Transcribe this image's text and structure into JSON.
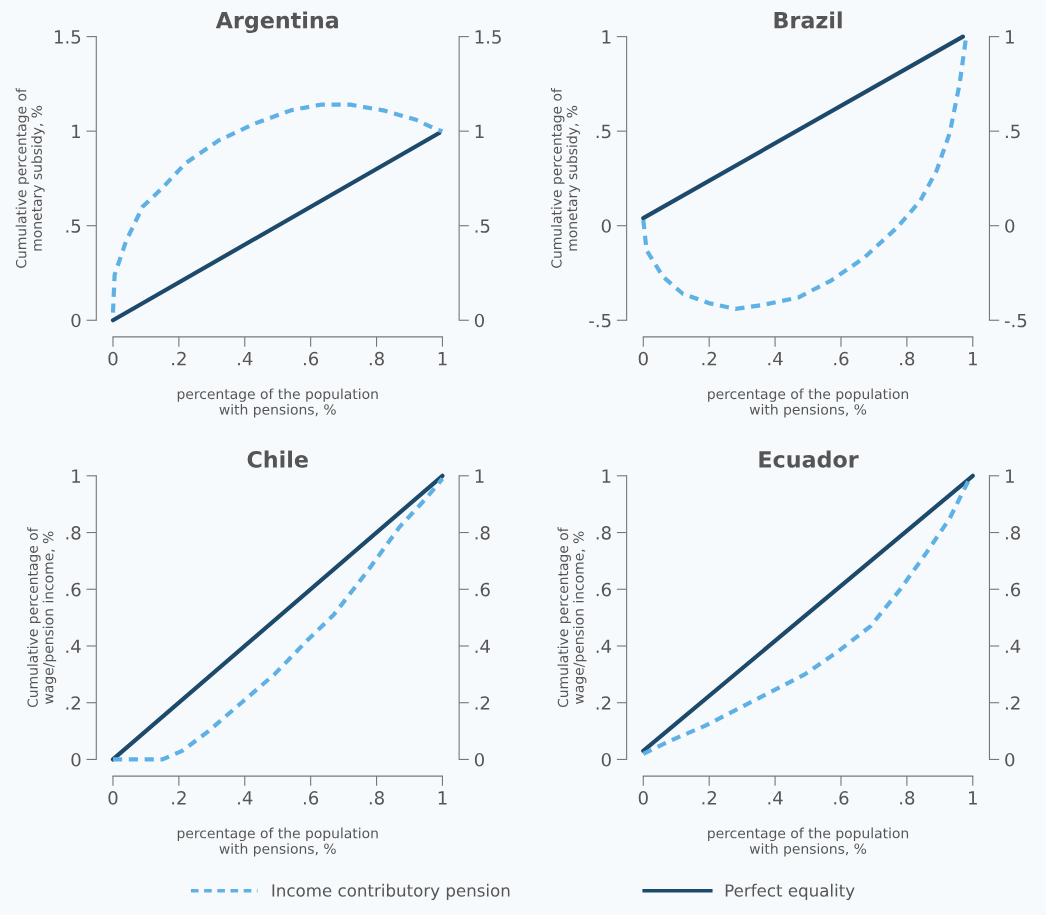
{
  "chart_data": [
    {
      "type": "line",
      "title": "Argentina",
      "xlabel": "percentage of the population\nwith pensions, %",
      "ylabel": "Cumulative percentage of\nmonetary subsidy, %",
      "legend": "bottom",
      "line_style": "solid",
      "xlim": [
        0,
        1
      ],
      "xticks": [
        0,
        {
          "value": 0.2,
          "label": ".2"
        },
        {
          "value": 0.4,
          "label": ".4"
        },
        {
          "value": 0.6,
          "label": ".6"
        },
        {
          "value": 0.8,
          "label": ".8"
        },
        1
      ],
      "ylim": [
        0,
        1.5
      ],
      "yticks": [
        0,
        {
          "value": 0.5,
          "label": ".5"
        },
        1,
        1.5
      ],
      "y2lim": [
        0,
        1.5
      ],
      "y2ticks": [
        0,
        {
          "value": 0.5,
          "label": ".5"
        },
        1,
        1.5
      ],
      "series": [
        {
          "name": "Income contributory pension",
          "color": "#5fb1e5",
          "line_style": "dashed",
          "x": [
            0,
            0.005,
            0.04,
            0.09,
            0.15,
            0.22,
            0.32,
            0.43,
            0.54,
            0.63,
            0.72,
            0.82,
            0.92,
            0.98,
            1.0
          ],
          "values": [
            0.04,
            0.24,
            0.42,
            0.6,
            0.7,
            0.83,
            0.95,
            1.04,
            1.11,
            1.14,
            1.14,
            1.11,
            1.06,
            1.01,
            1.0
          ]
        },
        {
          "name": "Perfect equality",
          "color": "#1d4a6b",
          "x": [
            0,
            0.99
          ],
          "values": [
            0,
            0.99
          ]
        }
      ]
    },
    {
      "type": "line",
      "title": "Brazil",
      "xlabel": "percentage of the population\nwith pensions, %",
      "ylabel": "Cumulative percentage of\nmonetary subsidy, %",
      "line_style": "solid",
      "xlim": [
        0,
        1
      ],
      "xticks": [
        0,
        {
          "value": 0.2,
          "label": ".2"
        },
        {
          "value": 0.4,
          "label": ".4"
        },
        {
          "value": 0.6,
          "label": ".6"
        },
        {
          "value": 0.8,
          "label": ".8"
        },
        1
      ],
      "ylim": [
        -0.5,
        1
      ],
      "yticks": [
        {
          "value": -0.5,
          "label": "-.5"
        },
        0,
        {
          "value": 0.5,
          "label": ".5"
        },
        1
      ],
      "y2lim": [
        -0.5,
        1
      ],
      "y2ticks": [
        {
          "value": -0.5,
          "label": "-.5"
        },
        0,
        {
          "value": 0.5,
          "label": ".5"
        },
        1
      ],
      "series": [
        {
          "color": "#5fb1e5",
          "line_style": "dashed",
          "x": [
            0,
            0.01,
            0.06,
            0.12,
            0.2,
            0.28,
            0.36,
            0.47,
            0.57,
            0.67,
            0.77,
            0.84,
            0.89,
            0.93,
            0.96,
            0.98
          ],
          "values": [
            0.03,
            -0.13,
            -0.27,
            -0.36,
            -0.41,
            -0.44,
            -0.42,
            -0.38,
            -0.29,
            -0.17,
            -0.01,
            0.13,
            0.29,
            0.49,
            0.75,
            1.0
          ]
        },
        {
          "color": "#1d4a6b",
          "x": [
            0,
            0.97
          ],
          "values": [
            0.04,
            1.0
          ]
        }
      ]
    },
    {
      "type": "line",
      "title": "Chile",
      "xlabel": "percentage of the population\nwith pensions, %",
      "ylabel": "Cumulative percentage of\nwage/pension income, %",
      "line_style": "solid",
      "xlim": [
        0,
        1
      ],
      "xticks": [
        0,
        {
          "value": 0.2,
          "label": ".2"
        },
        {
          "value": 0.4,
          "label": ".4"
        },
        {
          "value": 0.6,
          "label": ".6"
        },
        {
          "value": 0.8,
          "label": ".8"
        },
        1
      ],
      "ylim": [
        0,
        1
      ],
      "yticks": [
        0,
        {
          "value": 0.2,
          "label": ".2"
        },
        {
          "value": 0.4,
          "label": ".4"
        },
        {
          "value": 0.6,
          "label": ".6"
        },
        {
          "value": 0.8,
          "label": ".8"
        },
        1
      ],
      "y2lim": [
        0,
        1
      ],
      "y2ticks": [
        0,
        {
          "value": 0.2,
          "label": ".2"
        },
        {
          "value": 0.4,
          "label": ".4"
        },
        {
          "value": 0.6,
          "label": ".6"
        },
        {
          "value": 0.8,
          "label": ".8"
        },
        1
      ],
      "series": [
        {
          "color": "#5fb1e5",
          "line_style": "dashed",
          "x": [
            0,
            0.08,
            0.15,
            0.21,
            0.29,
            0.39,
            0.49,
            0.59,
            0.67,
            0.77,
            0.87,
            0.95,
            1.0
          ],
          "values": [
            0,
            0.0,
            0.0,
            0.03,
            0.1,
            0.2,
            0.3,
            0.42,
            0.51,
            0.66,
            0.82,
            0.92,
            0.99
          ]
        },
        {
          "color": "#1d4a6b",
          "x": [
            0,
            1
          ],
          "values": [
            0,
            1
          ]
        }
      ]
    },
    {
      "type": "line",
      "title": "Ecuador",
      "xlabel": "percentage of the population\nwith pensions, %",
      "ylabel": "Cumulative percentage of\nwage/pension income, %",
      "line_style": "solid",
      "xlim": [
        0,
        1
      ],
      "xticks": [
        0,
        {
          "value": 0.2,
          "label": ".2"
        },
        {
          "value": 0.4,
          "label": ".4"
        },
        {
          "value": 0.6,
          "label": ".6"
        },
        {
          "value": 0.8,
          "label": ".8"
        },
        1
      ],
      "ylim": [
        0,
        1
      ],
      "yticks": [
        0,
        {
          "value": 0.2,
          "label": ".2"
        },
        {
          "value": 0.4,
          "label": ".4"
        },
        {
          "value": 0.6,
          "label": ".6"
        },
        {
          "value": 0.8,
          "label": ".8"
        },
        1
      ],
      "y2lim": [
        0,
        1
      ],
      "y2ticks": [
        0,
        {
          "value": 0.2,
          "label": ".2"
        },
        {
          "value": 0.4,
          "label": ".4"
        },
        {
          "value": 0.6,
          "label": ".6"
        },
        {
          "value": 0.8,
          "label": ".8"
        },
        1
      ],
      "series": [
        {
          "color": "#5fb1e5",
          "line_style": "dashed",
          "x": [
            0,
            0.09,
            0.19,
            0.29,
            0.39,
            0.49,
            0.59,
            0.69,
            0.78,
            0.86,
            0.93,
            0.99
          ],
          "values": [
            0.02,
            0.07,
            0.12,
            0.18,
            0.24,
            0.3,
            0.38,
            0.47,
            0.6,
            0.73,
            0.85,
            0.99
          ]
        },
        {
          "color": "#1d4a6b",
          "x": [
            0,
            1
          ],
          "values": [
            0.03,
            1.0
          ]
        }
      ]
    }
  ]
}
